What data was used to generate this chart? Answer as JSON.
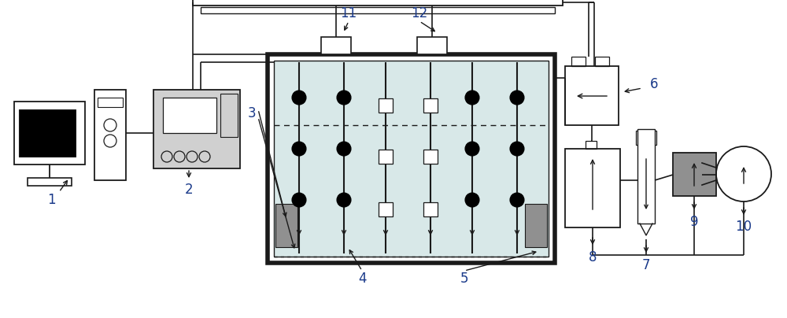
{
  "bg_color": "#ffffff",
  "lc": "#1a1a1a",
  "label_color": "#1a3a8a",
  "fill_box": "#d0d0d0",
  "soil_fill": "#d8e8e8",
  "gray_block": "#909090",
  "pump_fill": "#909090"
}
